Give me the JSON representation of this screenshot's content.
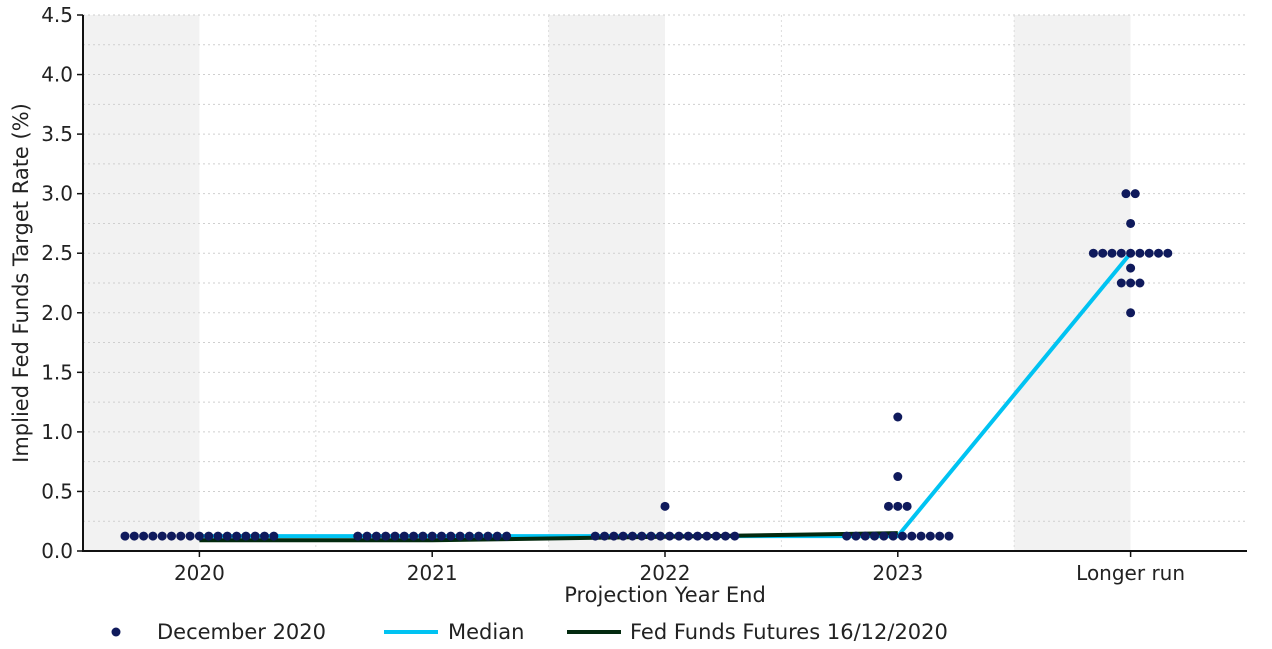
{
  "chart_data": {
    "type": "scatter",
    "title": "",
    "xlabel": "Projection Year End",
    "ylabel": "Implied Fed Funds Target Rate (%)",
    "categories": [
      "2020",
      "2021",
      "2022",
      "2023",
      "Longer run"
    ],
    "ylim": [
      0,
      4.5
    ],
    "yticks": [
      "0.0",
      "0.5",
      "1.0",
      "1.5",
      "2.0",
      "2.5",
      "3.0",
      "3.5",
      "4.0",
      "4.5"
    ],
    "grid": true,
    "legend_position": "bottom",
    "dots": [
      {
        "category": "2020",
        "groups": [
          {
            "value": 0.125,
            "count": 17
          }
        ]
      },
      {
        "category": "2021",
        "groups": [
          {
            "value": 0.125,
            "count": 17
          }
        ]
      },
      {
        "category": "2022",
        "groups": [
          {
            "value": 0.125,
            "count": 16
          },
          {
            "value": 0.375,
            "count": 1
          }
        ]
      },
      {
        "category": "2023",
        "groups": [
          {
            "value": 0.125,
            "count": 12
          },
          {
            "value": 0.375,
            "count": 3
          },
          {
            "value": 0.625,
            "count": 1
          },
          {
            "value": 1.125,
            "count": 1
          }
        ]
      },
      {
        "category": "Longer run",
        "groups": [
          {
            "value": 2.0,
            "count": 1
          },
          {
            "value": 2.25,
            "count": 3
          },
          {
            "value": 2.375,
            "count": 1
          },
          {
            "value": 2.5,
            "count": 9
          },
          {
            "value": 2.75,
            "count": 1
          },
          {
            "value": 3.0,
            "count": 2
          }
        ]
      }
    ],
    "series": [
      {
        "name": "December 2020",
        "kind": "dots",
        "color": "#0f1a5c"
      },
      {
        "name": "Median",
        "kind": "line",
        "color": "#00c3f2",
        "x": [
          "2020",
          "2021",
          "2022",
          "2023",
          "Longer run"
        ],
        "values": [
          0.125,
          0.125,
          0.125,
          0.125,
          2.5
        ]
      },
      {
        "name": "Fed Funds Futures 16/12/2020",
        "kind": "line",
        "color": "#032a0f",
        "x": [
          "2020",
          "2021",
          "2022",
          "2023"
        ],
        "values": [
          0.09,
          0.09,
          0.12,
          0.15
        ]
      }
    ]
  }
}
